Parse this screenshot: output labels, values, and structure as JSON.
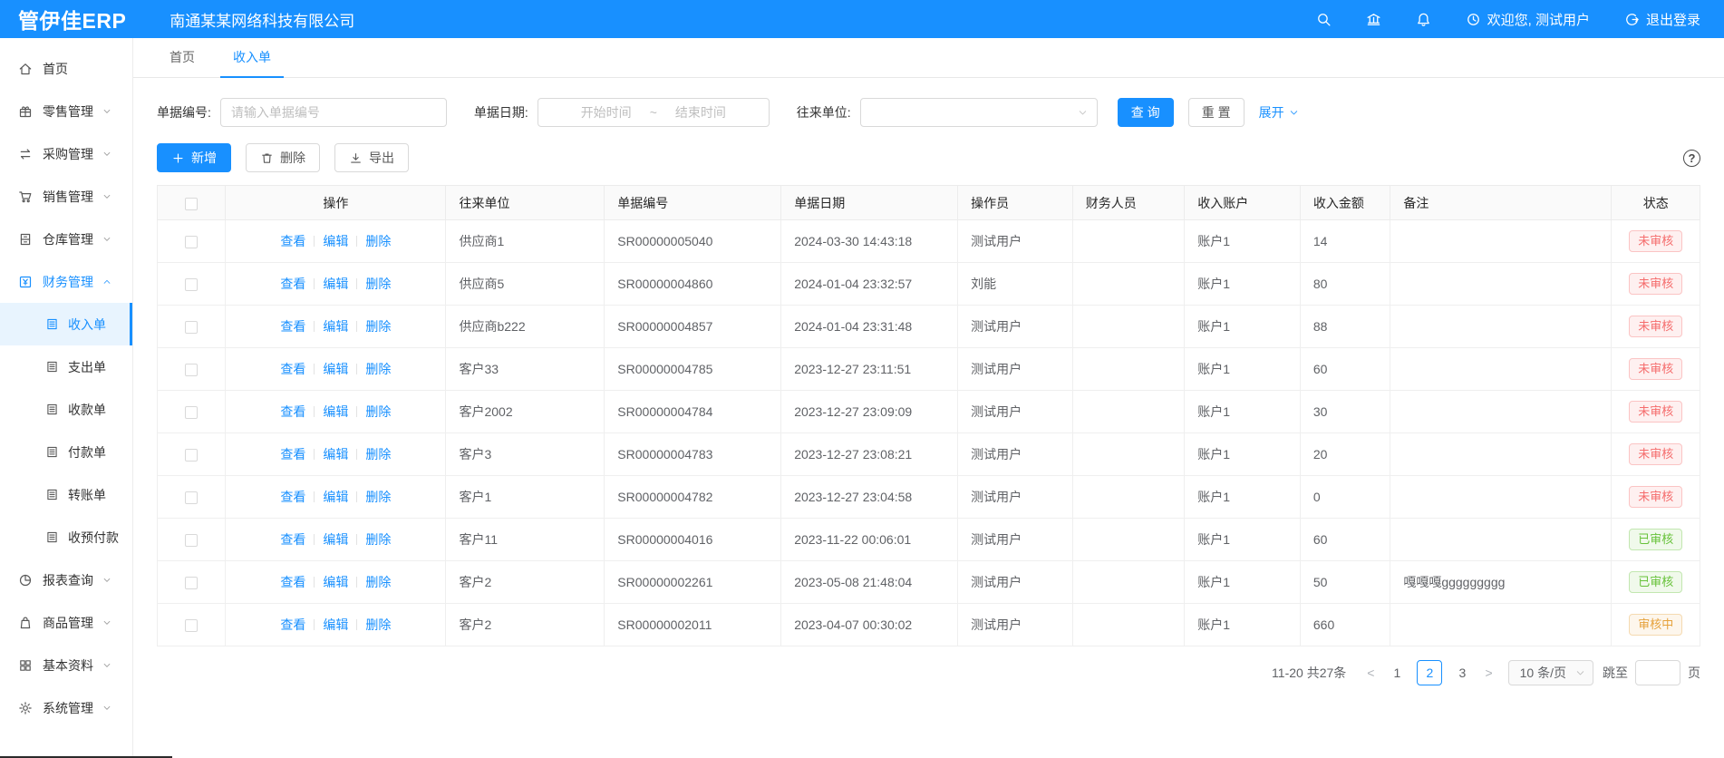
{
  "topbar": {
    "logo": "管伊佳ERP",
    "company": "南通某某网络科技有限公司",
    "welcome": "欢迎您, 测试用户",
    "logout": "退出登录"
  },
  "sidebar": {
    "items": [
      {
        "key": "home",
        "label": "首页",
        "icon": "home",
        "expandable": false
      },
      {
        "key": "retail",
        "label": "零售管理",
        "icon": "retail",
        "expandable": true
      },
      {
        "key": "purchase",
        "label": "采购管理",
        "icon": "purchase",
        "expandable": true
      },
      {
        "key": "sales",
        "label": "销售管理",
        "icon": "sales",
        "expandable": true
      },
      {
        "key": "warehouse",
        "label": "仓库管理",
        "icon": "warehouse",
        "expandable": true
      },
      {
        "key": "finance",
        "label": "财务管理",
        "icon": "finance",
        "expandable": true,
        "expanded": true,
        "active": true,
        "children": [
          {
            "key": "income",
            "label": "收入单",
            "active": true
          },
          {
            "key": "expense",
            "label": "支出单",
            "active": false
          },
          {
            "key": "receipt",
            "label": "收款单",
            "active": false
          },
          {
            "key": "payment",
            "label": "付款单",
            "active": false
          },
          {
            "key": "transfer",
            "label": "转账单",
            "active": false
          },
          {
            "key": "prepay",
            "label": "收预付款",
            "active": false
          }
        ]
      },
      {
        "key": "report",
        "label": "报表查询",
        "icon": "report",
        "expandable": true
      },
      {
        "key": "goods",
        "label": "商品管理",
        "icon": "goods",
        "expandable": true
      },
      {
        "key": "basic",
        "label": "基本资料",
        "icon": "basic",
        "expandable": true
      },
      {
        "key": "system",
        "label": "系统管理",
        "icon": "system",
        "expandable": true
      }
    ]
  },
  "tabs": [
    {
      "key": "home",
      "label": "首页",
      "active": false
    },
    {
      "key": "income",
      "label": "收入单",
      "active": true
    }
  ],
  "filters": {
    "bill_no_label": "单据编号:",
    "bill_no_placeholder": "请输入单据编号",
    "date_label": "单据日期:",
    "date_start_placeholder": "开始时间",
    "date_separator": "~",
    "date_end_placeholder": "结束时间",
    "partner_label": "往来单位:",
    "search_button": "查 询",
    "reset_button": "重 置",
    "expand_link": "展开"
  },
  "toolbar": {
    "add": "新增",
    "delete": "删除",
    "export": "导出",
    "help_icon": "?"
  },
  "table": {
    "headers": [
      "操作",
      "往来单位",
      "单据编号",
      "单据日期",
      "操作员",
      "财务人员",
      "收入账户",
      "收入金额",
      "备注",
      "状态"
    ],
    "action_labels": [
      "查看",
      "编辑",
      "删除"
    ],
    "rows": [
      {
        "partner": "供应商1",
        "bill_no": "SR00000005040",
        "date": "2024-03-30 14:43:18",
        "operator": "测试用户",
        "finance_staff": "",
        "account": "账户1",
        "amount": "14",
        "remark": "",
        "status": "未审核",
        "status_type": "red"
      },
      {
        "partner": "供应商5",
        "bill_no": "SR00000004860",
        "date": "2024-01-04 23:32:57",
        "operator": "刘能",
        "finance_staff": "",
        "account": "账户1",
        "amount": "80",
        "remark": "",
        "status": "未审核",
        "status_type": "red"
      },
      {
        "partner": "供应商b222",
        "bill_no": "SR00000004857",
        "date": "2024-01-04 23:31:48",
        "operator": "测试用户",
        "finance_staff": "",
        "account": "账户1",
        "amount": "88",
        "remark": "",
        "status": "未审核",
        "status_type": "red"
      },
      {
        "partner": "客户33",
        "bill_no": "SR00000004785",
        "date": "2023-12-27 23:11:51",
        "operator": "测试用户",
        "finance_staff": "",
        "account": "账户1",
        "amount": "60",
        "remark": "",
        "status": "未审核",
        "status_type": "red"
      },
      {
        "partner": "客户2002",
        "bill_no": "SR00000004784",
        "date": "2023-12-27 23:09:09",
        "operator": "测试用户",
        "finance_staff": "",
        "account": "账户1",
        "amount": "30",
        "remark": "",
        "status": "未审核",
        "status_type": "red"
      },
      {
        "partner": "客户3",
        "bill_no": "SR00000004783",
        "date": "2023-12-27 23:08:21",
        "operator": "测试用户",
        "finance_staff": "",
        "account": "账户1",
        "amount": "20",
        "remark": "",
        "status": "未审核",
        "status_type": "red"
      },
      {
        "partner": "客户1",
        "bill_no": "SR00000004782",
        "date": "2023-12-27 23:04:58",
        "operator": "测试用户",
        "finance_staff": "",
        "account": "账户1",
        "amount": "0",
        "remark": "",
        "status": "未审核",
        "status_type": "red"
      },
      {
        "partner": "客户11",
        "bill_no": "SR00000004016",
        "date": "2023-11-22 00:06:01",
        "operator": "测试用户",
        "finance_staff": "",
        "account": "账户1",
        "amount": "60",
        "remark": "",
        "status": "已审核",
        "status_type": "green"
      },
      {
        "partner": "客户2",
        "bill_no": "SR00000002261",
        "date": "2023-05-08 21:48:04",
        "operator": "测试用户",
        "finance_staff": "",
        "account": "账户1",
        "amount": "50",
        "remark": "嘎嘎嘎ggggggggg",
        "status": "已审核",
        "status_type": "green"
      },
      {
        "partner": "客户2",
        "bill_no": "SR00000002011",
        "date": "2023-04-07 00:30:02",
        "operator": "测试用户",
        "finance_staff": "",
        "account": "账户1",
        "amount": "660",
        "remark": "",
        "status": "审核中",
        "status_type": "orange"
      }
    ]
  },
  "pagination": {
    "total": "11-20 共27条",
    "prev": "<",
    "next": ">",
    "pages": [
      "1",
      "2",
      "3"
    ],
    "current": "2",
    "page_size": "10 条/页",
    "jump_label": "跳至",
    "jump_suffix": "页"
  },
  "colors": {
    "primary": "#1890ff",
    "status_unaudited": "#f56c6c",
    "status_audited": "#67c23a",
    "status_auditing": "#e6a23c"
  }
}
